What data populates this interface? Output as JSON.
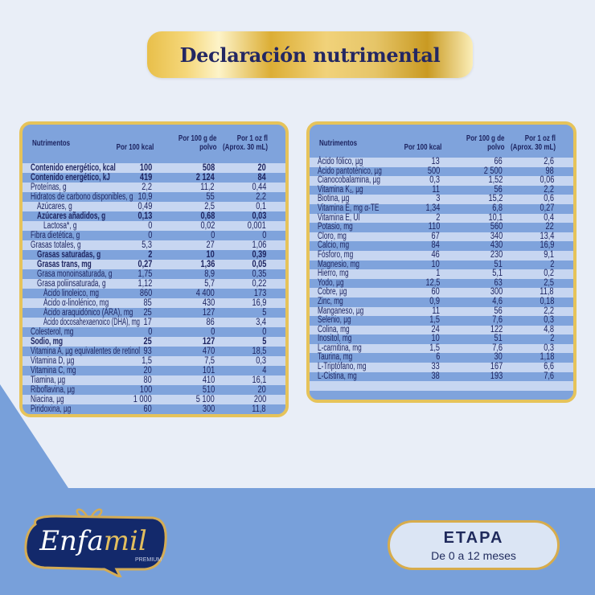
{
  "title": "Declaración nutrimental",
  "columns": {
    "nutrient": "Nutrimentos",
    "per100kcal": "Por 100 kcal",
    "per100g_a": "Por 100 g de",
    "per100g_b": "polvo",
    "peroz_a": "Por 1 oz fl",
    "peroz_b": "(Aprox. 30 mL)"
  },
  "left_rows": [
    {
      "n": "Contenido energético, kcal",
      "a": "100",
      "b": "508",
      "c": "20",
      "s": "b"
    },
    {
      "n": "Contenido energético, kJ",
      "a": "419",
      "b": "2 124",
      "c": "84",
      "s": "b"
    },
    {
      "n": "Proteínas, g",
      "a": "2,2",
      "b": "11,2",
      "c": "0,44",
      "s": ""
    },
    {
      "n": "Hidratos de carbono disponibles, g",
      "a": "10,9",
      "b": "55",
      "c": "2,2",
      "s": ""
    },
    {
      "n": "Azúcares, g",
      "a": "0,49",
      "b": "2,5",
      "c": "0,1",
      "s": "i1"
    },
    {
      "n": "Azúcares añadidos, g",
      "a": "0,13",
      "b": "0,68",
      "c": "0,03",
      "s": "b i1"
    },
    {
      "n": "Lactosa*, g",
      "a": "0",
      "b": "0,02",
      "c": "0,001",
      "s": "i2"
    },
    {
      "n": "Fibra dietética, g",
      "a": "0",
      "b": "0",
      "c": "0",
      "s": ""
    },
    {
      "n": "Grasas totales, g",
      "a": "5,3",
      "b": "27",
      "c": "1,06",
      "s": ""
    },
    {
      "n": "Grasas saturadas, g",
      "a": "2",
      "b": "10",
      "c": "0,39",
      "s": "b i1"
    },
    {
      "n": "Grasas trans, mg",
      "a": "0,27",
      "b": "1,36",
      "c": "0,05",
      "s": "b i1"
    },
    {
      "n": "Grasa monoinsaturada, g",
      "a": "1,75",
      "b": "8,9",
      "c": "0,35",
      "s": "i1"
    },
    {
      "n": "Grasa poliinsaturada, g",
      "a": "1,12",
      "b": "5,7",
      "c": "0,22",
      "s": "i1"
    },
    {
      "n": "Ácido linoleico, mg",
      "a": "860",
      "b": "4 400",
      "c": "173",
      "s": "i2"
    },
    {
      "n": "Ácido α-linolénico, mg",
      "a": "85",
      "b": "430",
      "c": "16,9",
      "s": "i2"
    },
    {
      "n": "Ácido araquidónico (ARA), mg",
      "a": "25",
      "b": "127",
      "c": "5",
      "s": "i2"
    },
    {
      "n": "Ácido docosahexaenoico (DHA), mg",
      "a": "17",
      "b": "86",
      "c": "3,4",
      "s": "i2"
    },
    {
      "n": "Colesterol, mg",
      "a": "0",
      "b": "0",
      "c": "0",
      "s": ""
    },
    {
      "n": "Sodio, mg",
      "a": "25",
      "b": "127",
      "c": "5",
      "s": "b"
    },
    {
      "n": "Vitamina A, µg equivalentes de retinol",
      "a": "93",
      "b": "470",
      "c": "18,5",
      "s": ""
    },
    {
      "n": "Vitamina D, µg",
      "a": "1,5",
      "b": "7,5",
      "c": "0,3",
      "s": ""
    },
    {
      "n": "Vitamina C, mg",
      "a": "20",
      "b": "101",
      "c": "4",
      "s": ""
    },
    {
      "n": "Tiamina, µg",
      "a": "80",
      "b": "410",
      "c": "16,1",
      "s": ""
    },
    {
      "n": "Riboflavina, µg",
      "a": "100",
      "b": "510",
      "c": "20",
      "s": ""
    },
    {
      "n": "Niacina, µg",
      "a": "1 000",
      "b": "5 100",
      "c": "200",
      "s": ""
    },
    {
      "n": "Piridoxina, µg",
      "a": "60",
      "b": "300",
      "c": "11,8",
      "s": ""
    }
  ],
  "right_rows": [
    {
      "n": "Ácido fólico, µg",
      "a": "13",
      "b": "66",
      "c": "2,6",
      "s": ""
    },
    {
      "n": "Ácido pantoténico, µg",
      "a": "500",
      "b": "2 500",
      "c": "98",
      "s": ""
    },
    {
      "n": "Cianocobalamina, µg",
      "a": "0,3",
      "b": "1,52",
      "c": "0,06",
      "s": ""
    },
    {
      "n": "Vitamina K₁, µg",
      "a": "11",
      "b": "56",
      "c": "2,2",
      "s": ""
    },
    {
      "n": "Biotina, µg",
      "a": "3",
      "b": "15,2",
      "c": "0,6",
      "s": ""
    },
    {
      "n": "Vitamina E, mg α-TE",
      "a": "1,34",
      "b": "6,8",
      "c": "0,27",
      "s": ""
    },
    {
      "n": "Vitamina E, UI",
      "a": "2",
      "b": "10,1",
      "c": "0,4",
      "s": ""
    },
    {
      "n": "Potasio, mg",
      "a": "110",
      "b": "560",
      "c": "22",
      "s": ""
    },
    {
      "n": "Cloro, mg",
      "a": "67",
      "b": "340",
      "c": "13,4",
      "s": ""
    },
    {
      "n": "Calcio, mg",
      "a": "84",
      "b": "430",
      "c": "16,9",
      "s": ""
    },
    {
      "n": "Fósforo, mg",
      "a": "46",
      "b": "230",
      "c": "9,1",
      "s": ""
    },
    {
      "n": "Magnesio, mg",
      "a": "10",
      "b": "51",
      "c": "2",
      "s": ""
    },
    {
      "n": "Hierro, mg",
      "a": "1",
      "b": "5,1",
      "c": "0,2",
      "s": ""
    },
    {
      "n": "Yodo, µg",
      "a": "12,5",
      "b": "63",
      "c": "2,5",
      "s": ""
    },
    {
      "n": "Cobre, µg",
      "a": "60",
      "b": "300",
      "c": "11,8",
      "s": ""
    },
    {
      "n": "Zinc, mg",
      "a": "0,9",
      "b": "4,6",
      "c": "0,18",
      "s": ""
    },
    {
      "n": "Manganeso, µg",
      "a": "11",
      "b": "56",
      "c": "2,2",
      "s": ""
    },
    {
      "n": "Selenio, µg",
      "a": "1,5",
      "b": "7,6",
      "c": "0,3",
      "s": ""
    },
    {
      "n": "Colina, mg",
      "a": "24",
      "b": "122",
      "c": "4,8",
      "s": ""
    },
    {
      "n": "Inositol, mg",
      "a": "10",
      "b": "51",
      "c": "2",
      "s": ""
    },
    {
      "n": "L-carnitina, mg",
      "a": "1,5",
      "b": "7,6",
      "c": "0,3",
      "s": ""
    },
    {
      "n": "Taurina, mg",
      "a": "6",
      "b": "30",
      "c": "1,18",
      "s": ""
    },
    {
      "n": "L-Triptófano, mg",
      "a": "33",
      "b": "167",
      "c": "6,6",
      "s": ""
    },
    {
      "n": "L-Cistina, mg",
      "a": "38",
      "b": "193",
      "c": "7,6",
      "s": ""
    },
    {
      "n": "",
      "a": "",
      "b": "",
      "c": "",
      "s": ""
    },
    {
      "n": "",
      "a": "",
      "b": "",
      "c": "",
      "s": ""
    }
  ],
  "logo": {
    "brand": "Enfamil",
    "sub": "PREMIUM"
  },
  "stage": {
    "title": "ETAPA",
    "range": "De 0 a 12 meses"
  },
  "colors": {
    "navy": "#1d2460",
    "blue": "#78a0da",
    "gold": "#e6c35a",
    "stripe_light": "#c7d6f1"
  }
}
